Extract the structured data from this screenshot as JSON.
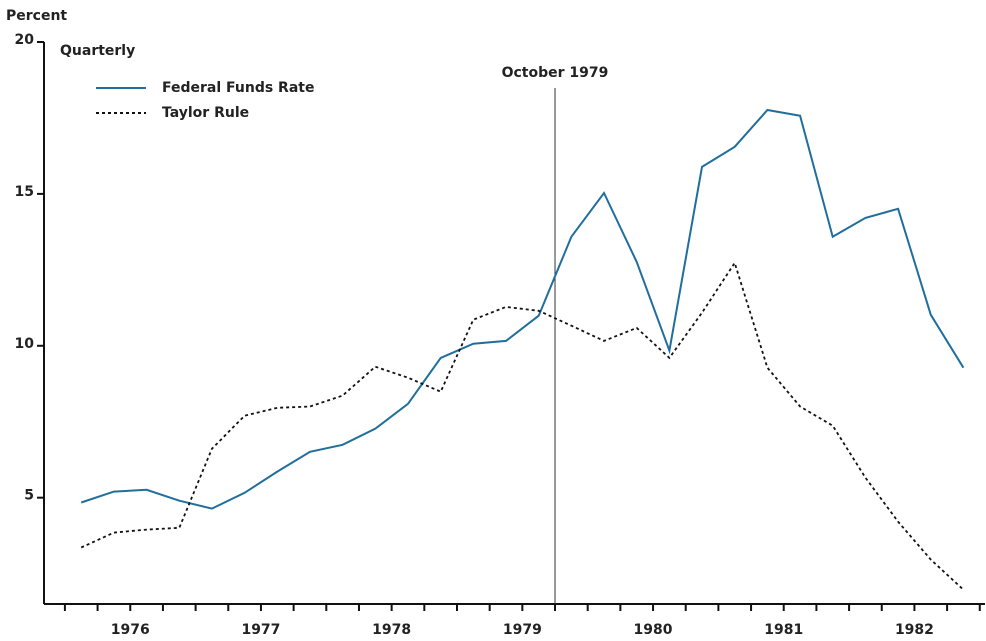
{
  "chart_data": {
    "type": "line",
    "y_label": "Percent",
    "subtitle": "Quarterly",
    "annotation": {
      "text": "October 1979",
      "x": 1979.75
    },
    "x": [
      1976.125,
      1976.375,
      1976.625,
      1976.875,
      1977.125,
      1977.375,
      1977.625,
      1977.875,
      1978.125,
      1978.375,
      1978.625,
      1978.875,
      1979.125,
      1979.375,
      1979.625,
      1979.875,
      1980.125,
      1980.375,
      1980.625,
      1980.875,
      1981.125,
      1981.375,
      1981.625,
      1981.875,
      1982.125,
      1982.375,
      1982.625,
      1982.875
    ],
    "series": [
      {
        "name": "Federal Funds Rate",
        "color": "#1f6e9c",
        "dash": "solid",
        "values": [
          4.84,
          5.2,
          5.26,
          4.9,
          4.64,
          5.16,
          5.86,
          6.51,
          6.74,
          7.27,
          8.09,
          9.6,
          10.07,
          10.16,
          10.99,
          13.59,
          15.03,
          12.76,
          9.84,
          15.89,
          16.55,
          17.76,
          17.57,
          13.59,
          14.21,
          14.51,
          11.02,
          9.28
        ]
      },
      {
        "name": "Taylor Rule",
        "color": "#111111",
        "dash": "dotted",
        "values": [
          3.36,
          3.85,
          3.95,
          4.01,
          6.61,
          7.7,
          7.96,
          8.0,
          8.36,
          9.31,
          8.95,
          8.49,
          10.86,
          11.28,
          11.15,
          10.66,
          10.16,
          10.59,
          9.6,
          11.09,
          12.73,
          9.28,
          8.0,
          7.37,
          5.66,
          4.21,
          2.96,
          1.97
        ]
      }
    ],
    "xlim": [
      1975.84,
      1983.04
    ],
    "xticks": [
      {
        "value": 1976.5,
        "label": "1976"
      },
      {
        "value": 1977.5,
        "label": "1977"
      },
      {
        "value": 1978.5,
        "label": "1978"
      },
      {
        "value": 1979.5,
        "label": "1979"
      },
      {
        "value": 1980.5,
        "label": "1980"
      },
      {
        "value": 1981.5,
        "label": "1981"
      },
      {
        "value": 1982.5,
        "label": "1982"
      }
    ],
    "xminorticks": [
      1976,
      1976.25,
      1976.5,
      1976.75,
      1977,
      1977.25,
      1977.5,
      1977.75,
      1978,
      1978.25,
      1978.5,
      1978.75,
      1979,
      1979.25,
      1979.5,
      1979.75,
      1980,
      1980.25,
      1980.5,
      1980.75,
      1981,
      1981.25,
      1981.5,
      1981.75,
      1982,
      1982.25,
      1982.5,
      1982.75,
      1983
    ],
    "ylim": [
      1.5,
      20
    ],
    "yticks": [
      5,
      10,
      15,
      20
    ],
    "grid": false,
    "legend": "upper left"
  }
}
